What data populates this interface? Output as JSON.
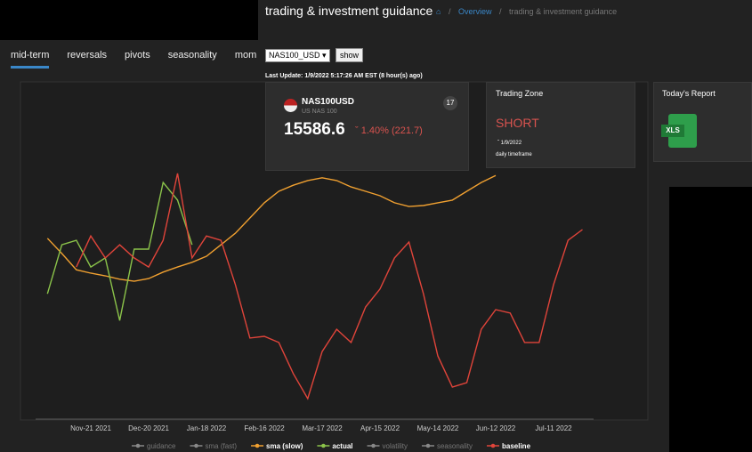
{
  "header": {
    "title": "trading & investment guidance",
    "breadcrumb": [
      "Overview",
      "trading & investment guidance"
    ]
  },
  "tabs": [
    {
      "label": "mid-term",
      "active": true
    },
    {
      "label": "reversals",
      "active": false
    },
    {
      "label": "pivots",
      "active": false
    },
    {
      "label": "seasonality",
      "active": false
    },
    {
      "label": "mom",
      "active": false
    }
  ],
  "controls": {
    "symbol": "NAS100_USD",
    "button": "show",
    "last_update": "Last Update: 1/9/2022 5:17:26 AM EST (8 hour(s) ago)"
  },
  "ticker": {
    "symbol": "NAS100USD",
    "name": "US NAS 100",
    "price": "15586.6",
    "change": "1.40% (221.7)"
  },
  "trading_zone": {
    "title": "Trading Zone",
    "signal": "SHORT",
    "date": "1/9/2022",
    "timeframe": "daily timeframe"
  },
  "report": {
    "title": "Today's Report",
    "file_type": "XLS"
  },
  "chart_data": {
    "type": "line",
    "ylim": [
      0,
      100
    ],
    "categories": [
      null,
      null,
      null,
      "Nov-21 2021",
      null,
      null,
      null,
      "Dec-20 2021",
      null,
      null,
      null,
      "Jan-18 2022",
      null,
      null,
      null,
      "Feb-16 2022",
      null,
      null,
      null,
      "Mar-17 2022",
      null,
      null,
      null,
      "Apr-15 2022",
      null,
      null,
      null,
      "May-14 2022",
      null,
      null,
      null,
      "Jun-12 2022",
      null,
      null,
      null,
      "Jul-11 2022",
      null,
      null
    ],
    "series": [
      {
        "name": "guidance",
        "color": "#888888",
        "visible": false
      },
      {
        "name": "sma (fast)",
        "color": "#888888",
        "visible": false
      },
      {
        "name": "sma (slow)",
        "color": "#f0a030",
        "visible": true,
        "values": [
          53.2,
          48.7,
          43.9,
          42.9,
          42.1,
          41.1,
          40.5,
          41.3,
          43.2,
          44.7,
          46.1,
          47.9,
          51.3,
          54.7,
          59.2,
          63.7,
          67.1,
          68.9,
          70.3,
          71.1,
          70.3,
          68.4,
          67.1,
          65.8,
          63.7,
          62.6,
          62.9,
          63.7,
          64.5,
          67.1,
          69.7,
          71.8,
          null,
          null,
          null,
          null,
          null,
          null
        ]
      },
      {
        "name": "actual",
        "color": "#8bc34a",
        "visible": true,
        "values": [
          36.8,
          51.3,
          52.6,
          44.7,
          47.4,
          28.9,
          50,
          50,
          69.7,
          64.5,
          51.3,
          null,
          null,
          null,
          null,
          null,
          null,
          null,
          null,
          null,
          null,
          null,
          null,
          null,
          null,
          null,
          null,
          null,
          null,
          null,
          null,
          null,
          null,
          null,
          null,
          null,
          null,
          null
        ]
      },
      {
        "name": "volatility",
        "color": "#888888",
        "visible": false
      },
      {
        "name": "seasonality",
        "color": "#888888",
        "visible": false
      },
      {
        "name": "baseline",
        "color": "#e0443a",
        "visible": true,
        "values": [
          null,
          null,
          44.7,
          53.9,
          47.4,
          51.3,
          47.4,
          44.7,
          52.6,
          72.4,
          47.4,
          53.9,
          52.6,
          39.5,
          23.7,
          24.2,
          22.4,
          13.2,
          5.8,
          19.7,
          26.3,
          22.4,
          32.9,
          38.2,
          47.4,
          52.1,
          36.8,
          18.4,
          9.2,
          10.5,
          26.3,
          32.1,
          31.1,
          22.4,
          22.4,
          39.5,
          52.6,
          55.8
        ]
      }
    ]
  }
}
